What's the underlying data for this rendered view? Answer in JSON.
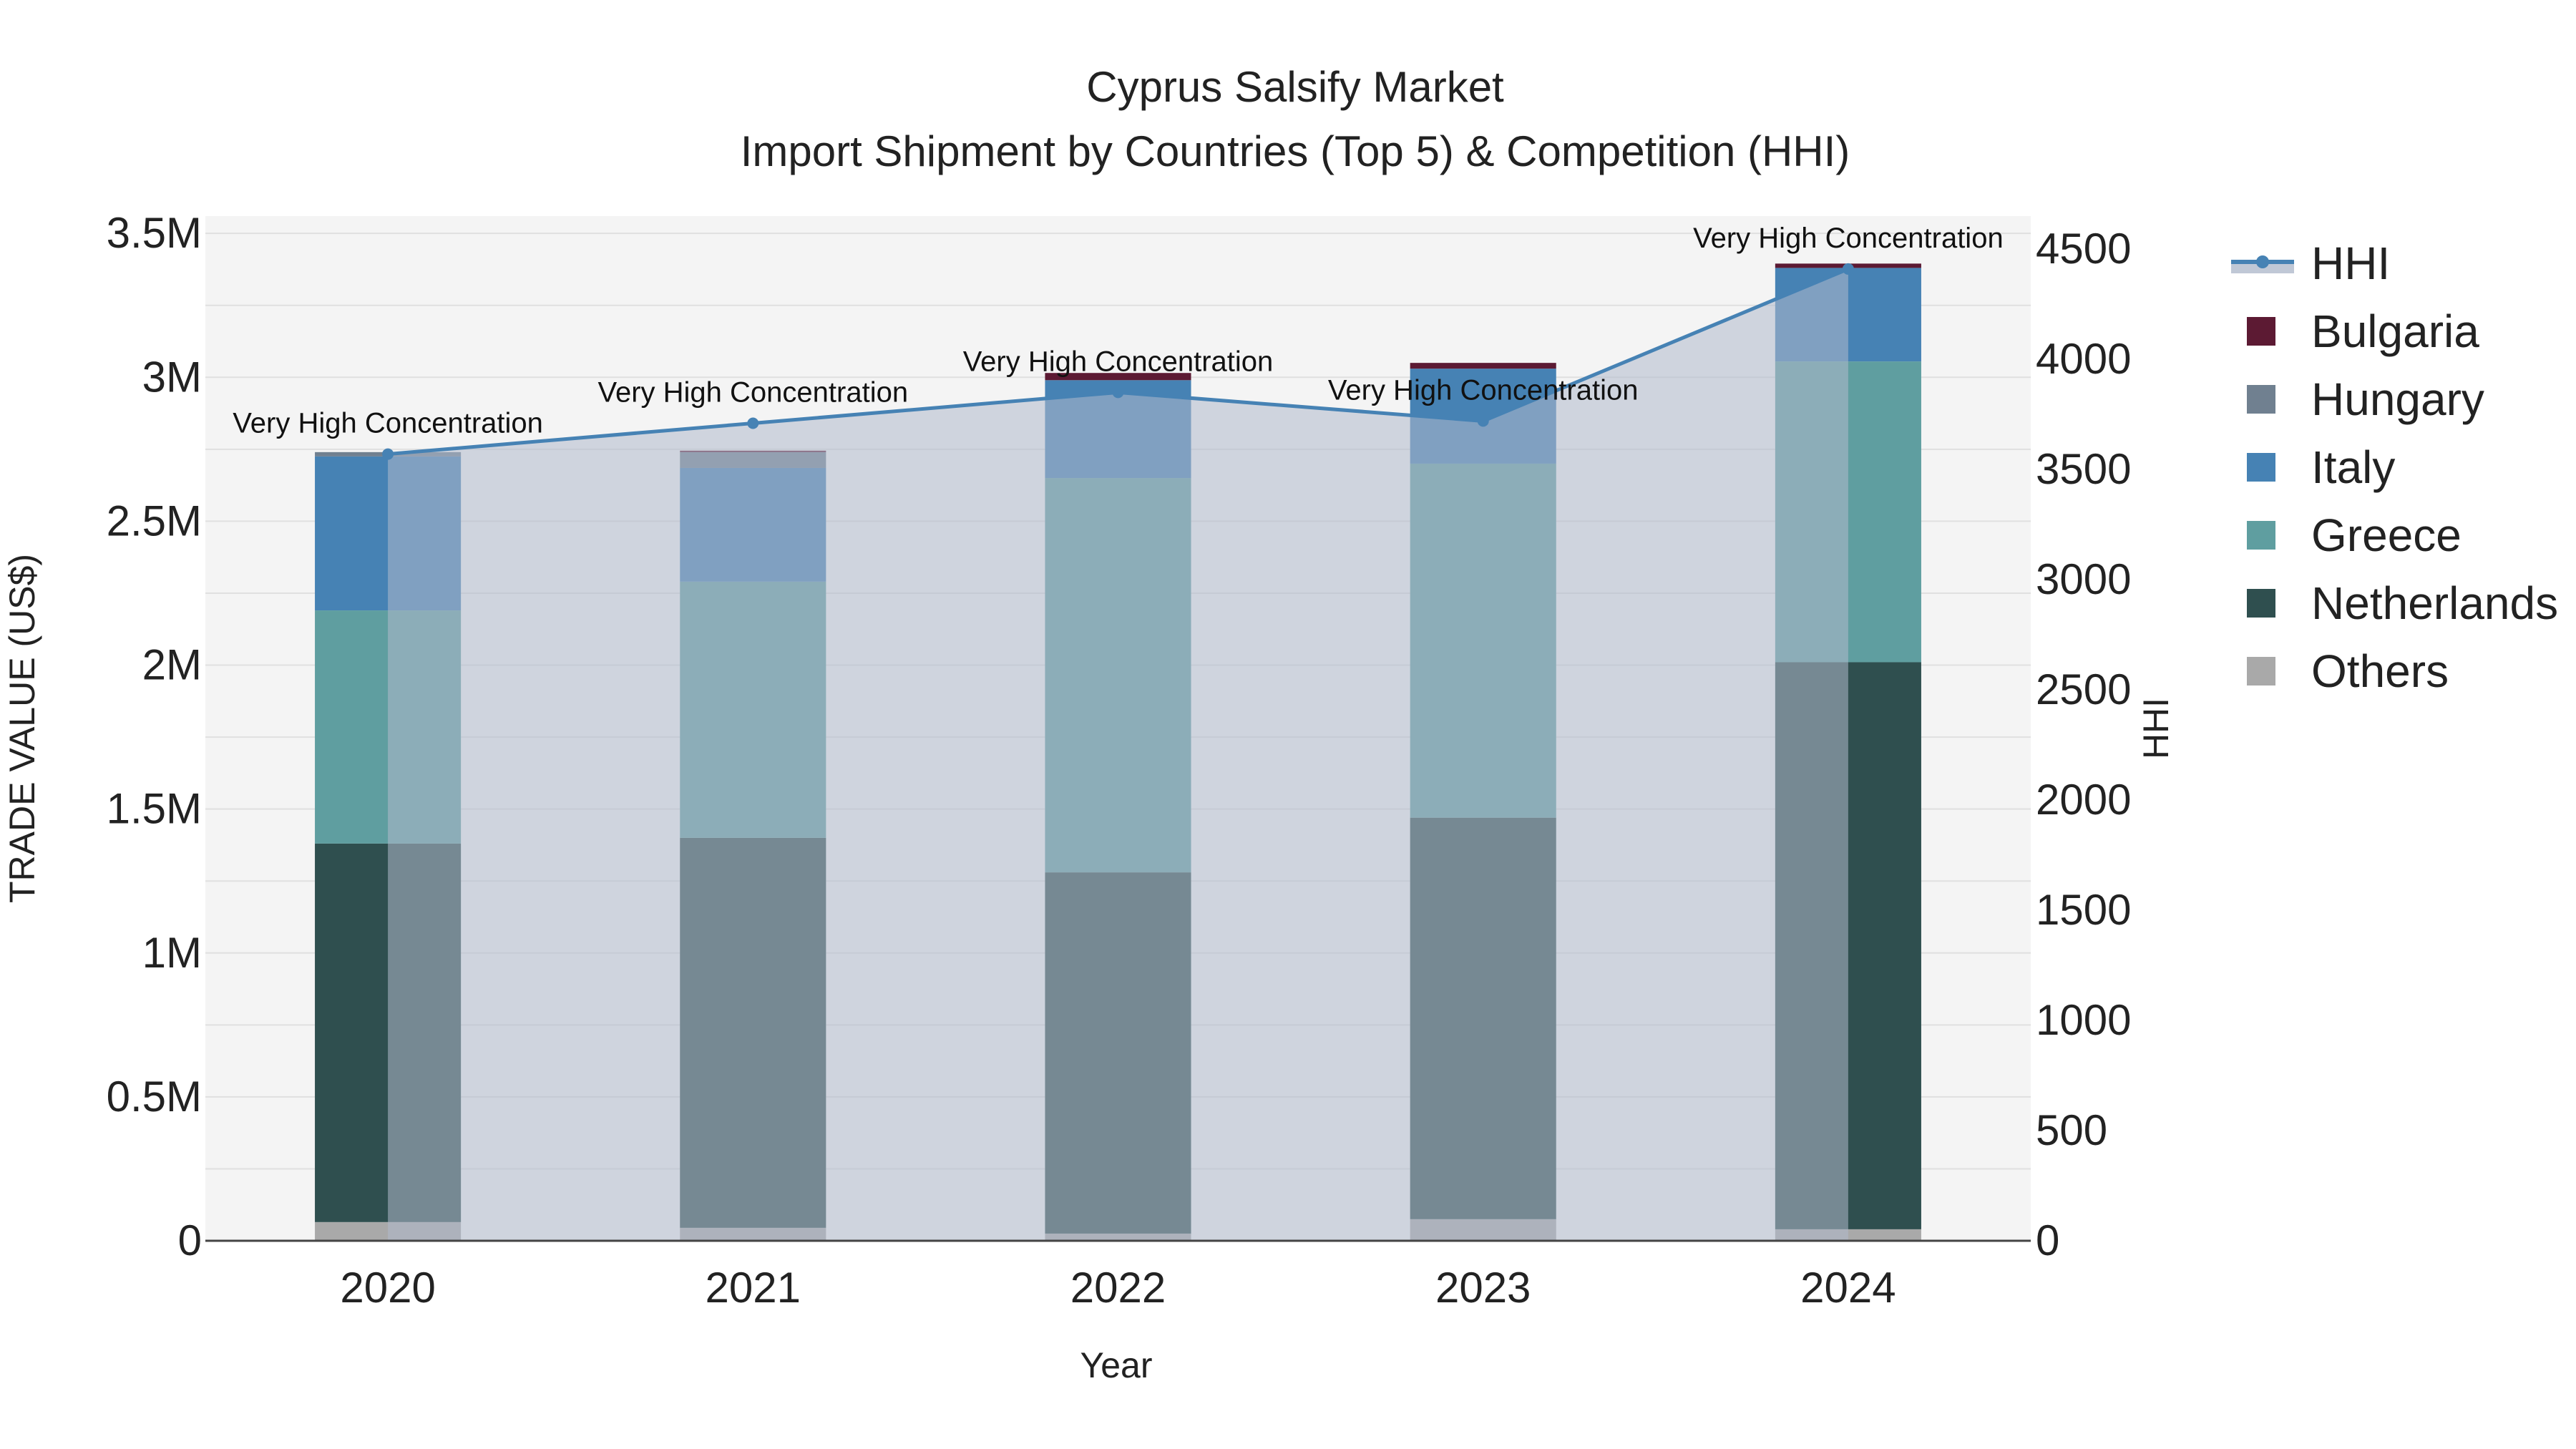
{
  "chart_data": {
    "type": "bar",
    "stacked": true,
    "title_line1": "Cyprus Salsify Market",
    "title_line2": "Import Shipment by Countries (Top 5) & Competition (HHI)",
    "xlabel": "Year",
    "ylabel": "TRADE VALUE (US$)",
    "y2label": "HHI",
    "categories": [
      "2020",
      "2021",
      "2022",
      "2023",
      "2024"
    ],
    "ylim": [
      0,
      3500000
    ],
    "y2lim": [
      0,
      4650
    ],
    "y_ticks": [
      {
        "value": 0,
        "label": "0"
      },
      {
        "value": 500000,
        "label": "0.5M"
      },
      {
        "value": 1000000,
        "label": "1M"
      },
      {
        "value": 1500000,
        "label": "1.5M"
      },
      {
        "value": 2000000,
        "label": "2M"
      },
      {
        "value": 2500000,
        "label": "2.5M"
      },
      {
        "value": 3000000,
        "label": "3M"
      },
      {
        "value": 3500000,
        "label": "3.5M"
      }
    ],
    "y2_ticks": [
      {
        "value": 0,
        "label": "0"
      },
      {
        "value": 500,
        "label": "500"
      },
      {
        "value": 1000,
        "label": "1000"
      },
      {
        "value": 1500,
        "label": "1500"
      },
      {
        "value": 2000,
        "label": "2000"
      },
      {
        "value": 2500,
        "label": "2500"
      },
      {
        "value": 3000,
        "label": "3000"
      },
      {
        "value": 3500,
        "label": "3500"
      },
      {
        "value": 4000,
        "label": "4000"
      },
      {
        "value": 4500,
        "label": "4500"
      }
    ],
    "series": [
      {
        "name": "Others",
        "color": "#a9a9a9",
        "values": [
          65000,
          45000,
          25000,
          75000,
          40000
        ]
      },
      {
        "name": "Netherlands",
        "color": "#2f4f4f",
        "values": [
          1315000,
          1355000,
          1255000,
          1395000,
          1970000
        ]
      },
      {
        "name": "Greece",
        "color": "#5f9ea0",
        "values": [
          810000,
          890000,
          1370000,
          1230000,
          1045000
        ]
      },
      {
        "name": "Italy",
        "color": "#4682b4",
        "values": [
          535000,
          395000,
          340000,
          330000,
          325000
        ]
      },
      {
        "name": "Hungary",
        "color": "#708090",
        "values": [
          15000,
          55000,
          0,
          0,
          0
        ]
      },
      {
        "name": "Bulgaria",
        "color": "#5c1a33",
        "values": [
          0,
          5000,
          25000,
          20000,
          15000
        ]
      }
    ],
    "hhi": {
      "name": "HHI",
      "color": "#4682b4",
      "values": [
        3570,
        3710,
        3850,
        3720,
        4410
      ],
      "labels": [
        "Very High Concentration",
        "Very High Concentration",
        "Very High Concentration",
        "Very High Concentration",
        "Very High Concentration"
      ]
    },
    "legend": [
      "HHI",
      "Bulgaria",
      "Hungary",
      "Italy",
      "Greece",
      "Netherlands",
      "Others"
    ],
    "legend_position": "right"
  }
}
